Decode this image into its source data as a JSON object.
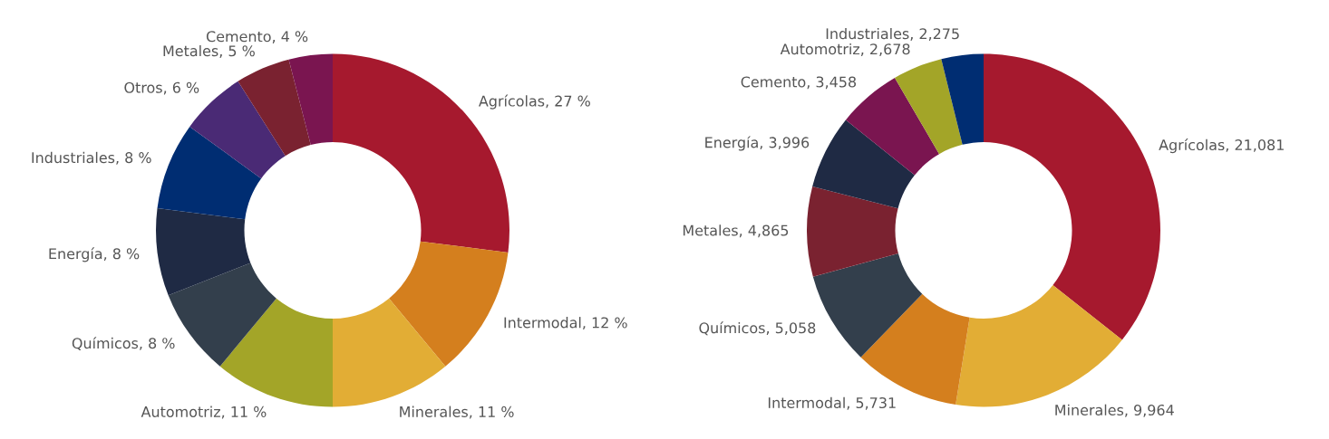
{
  "chart_data": [
    {
      "type": "donut",
      "categories": [
        "Agrícolas",
        "Intermodal",
        "Minerales",
        "Automotriz",
        "Químicos",
        "Energía",
        "Industriales",
        "Otros",
        "Metales",
        "Cemento"
      ],
      "values": [
        27,
        12,
        11,
        11,
        8,
        8,
        8,
        6,
        5,
        4
      ],
      "value_labels": [
        "27 %",
        "12 %",
        "11 %",
        "11 %",
        "8 %",
        "8 %",
        "8 %",
        "6 %",
        "5 %",
        "4 %"
      ],
      "colors": [
        "#a6192e",
        "#d47f1e",
        "#e2ad35",
        "#a3a528",
        "#333f4c",
        "#1f2a44",
        "#002d72",
        "#4a2a75",
        "#7a2230",
        "#7a1550"
      ]
    },
    {
      "type": "donut",
      "categories": [
        "Agrícolas",
        "Minerales",
        "Intermodal",
        "Químicos",
        "Metales",
        "Energía",
        "Cemento",
        "Automotriz",
        "Industriales"
      ],
      "values": [
        21081,
        9964,
        5731,
        5058,
        4865,
        3996,
        3458,
        2678,
        2275
      ],
      "value_labels": [
        "21,081",
        "9,964",
        "5,731",
        "5,058",
        "4,865",
        "3,996",
        "3,458",
        "2,678",
        "2,275"
      ],
      "colors": [
        "#a6192e",
        "#e2ad35",
        "#d47f1e",
        "#333f4c",
        "#7a2230",
        "#1f2a44",
        "#7a1550",
        "#a3a528",
        "#002d72"
      ]
    }
  ]
}
